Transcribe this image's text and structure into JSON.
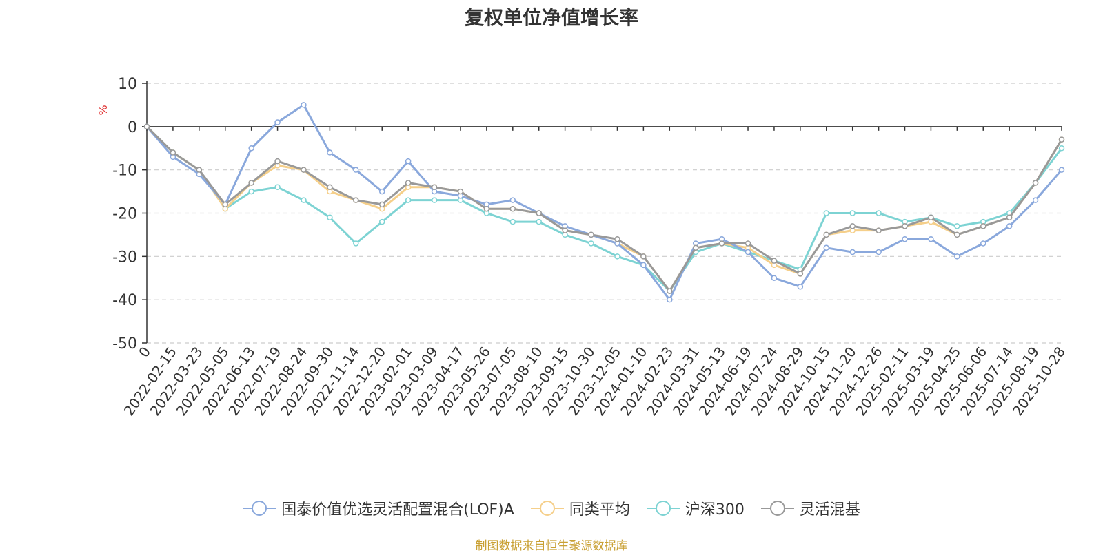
{
  "chart_data": {
    "type": "line",
    "title": "复权单位净值增长率",
    "ylabel": "%",
    "xlabel": "",
    "ylim": [
      -50,
      10
    ],
    "yticks": [
      10,
      0,
      -10,
      -20,
      -30,
      -40,
      -50
    ],
    "xticks": [
      "0",
      "2022-02-15",
      "2022-03-23",
      "2022-05-05",
      "2022-06-13",
      "2022-07-19",
      "2022-08-24",
      "2022-09-30",
      "2022-11-14",
      "2022-12-20",
      "2023-02-01",
      "2023-03-09",
      "2023-04-17",
      "2023-05-26",
      "2023-07-05",
      "2023-08-10",
      "2023-09-15",
      "2023-10-30",
      "2023-12-05",
      "2024-01-10",
      "2024-02-23",
      "2024-03-31",
      "2024-05-13",
      "2024-06-19",
      "2024-07-24",
      "2024-08-29",
      "2024-10-15",
      "2024-11-20",
      "2024-12-26",
      "2025-02-11",
      "2025-03-19",
      "2025-04-25",
      "2025-06-06",
      "2025-07-14",
      "2025-08-19",
      "2025-10-28"
    ],
    "grid": true,
    "legend_position": "bottom",
    "series": [
      {
        "name": "国泰价值优选灵活配置混合(LOF)A",
        "color": "#8aa8dc",
        "values": [
          0,
          -7,
          -11,
          -18,
          -5,
          1,
          5,
          -6,
          -10,
          -15,
          -8,
          -15,
          -16,
          -18,
          -17,
          -20,
          -23,
          -25,
          -27,
          -32,
          -40,
          -27,
          -26,
          -29,
          -35,
          -37,
          -28,
          -29,
          -29,
          -26,
          -26,
          -30,
          -27,
          -23,
          -17,
          -10
        ]
      },
      {
        "name": "同类平均",
        "color": "#f5cf8a",
        "values": [
          0,
          -6,
          -10,
          -19,
          -13,
          -9,
          -10,
          -15,
          -17,
          -19,
          -14,
          -14,
          -15,
          -19,
          -19,
          -20,
          -24,
          -25,
          -27,
          -30,
          -38,
          -28,
          -27,
          -28,
          -32,
          -34,
          -25,
          -24,
          -24,
          -23,
          -22,
          -25,
          -23,
          -21,
          -13,
          -3
        ]
      },
      {
        "name": "沪深300",
        "color": "#7dd3d3",
        "values": [
          0,
          -6,
          -10,
          -19,
          -15,
          -14,
          -17,
          -21,
          -27,
          -22,
          -17,
          -17,
          -17,
          -20,
          -22,
          -22,
          -25,
          -27,
          -30,
          -32,
          -38,
          -29,
          -27,
          -29,
          -31,
          -33,
          -20,
          -20,
          -20,
          -22,
          -21,
          -23,
          -22,
          -20,
          -13,
          -5
        ]
      },
      {
        "name": "灵活混基",
        "color": "#999999",
        "values": [
          0,
          -6,
          -10,
          -18,
          -13,
          -8,
          -10,
          -14,
          -17,
          -18,
          -13,
          -14,
          -15,
          -19,
          -19,
          -20,
          -24,
          -25,
          -26,
          -30,
          -38,
          -28,
          -27,
          -27,
          -31,
          -34,
          -25,
          -23,
          -24,
          -23,
          -21,
          -25,
          -23,
          -21,
          -13,
          -3
        ]
      }
    ]
  },
  "footer": {
    "source": "制图数据来自恒生聚源数据库"
  }
}
